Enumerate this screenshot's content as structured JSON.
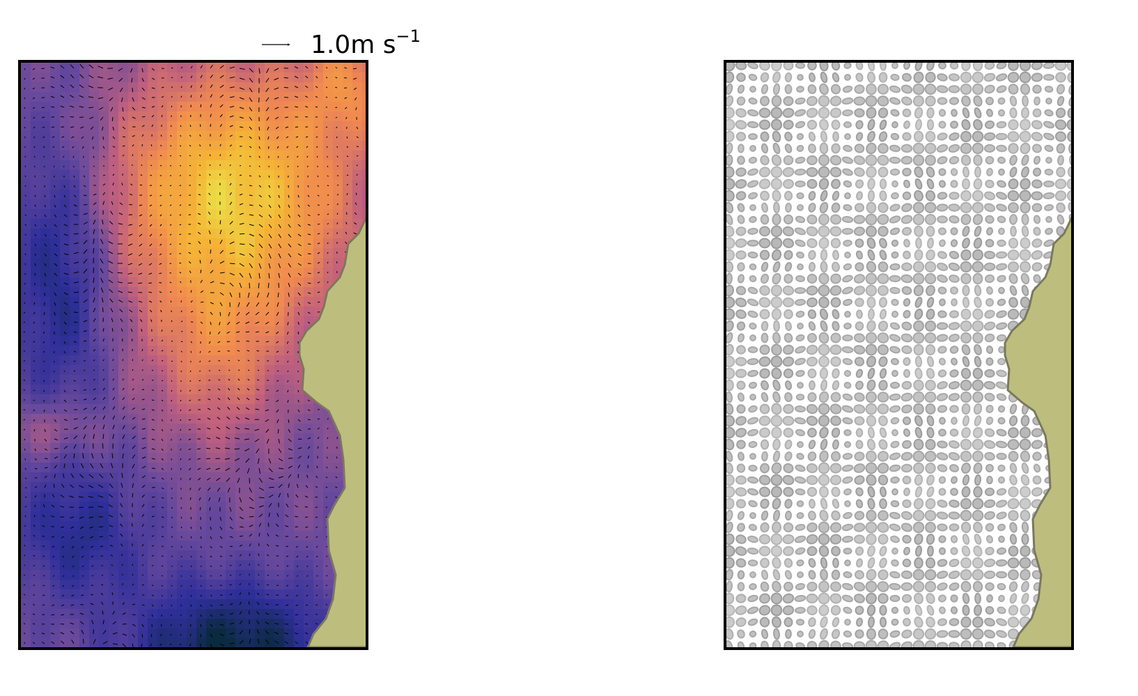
{
  "chart_data": [
    {
      "type": "heatmap",
      "overlay": "quiver",
      "colormap": [
        "#0a2a40",
        "#2f2f9a",
        "#6a4a9c",
        "#c0607e",
        "#f08a50",
        "#f5b436",
        "#e6f451"
      ],
      "land_color": "#bdbd7e",
      "coast_color": "#7a7a55",
      "quiver_key": {
        "value": "1.0",
        "units": "m s",
        "exponent": "−1"
      },
      "grid": false
    },
    {
      "type": "scatter",
      "marker": "ellipse",
      "marker_color": "#b8b8b8",
      "marker_edge_color": "#999999",
      "land_color": "#bdbd7e",
      "coast_color": "#7a7a55",
      "grid": false
    }
  ]
}
